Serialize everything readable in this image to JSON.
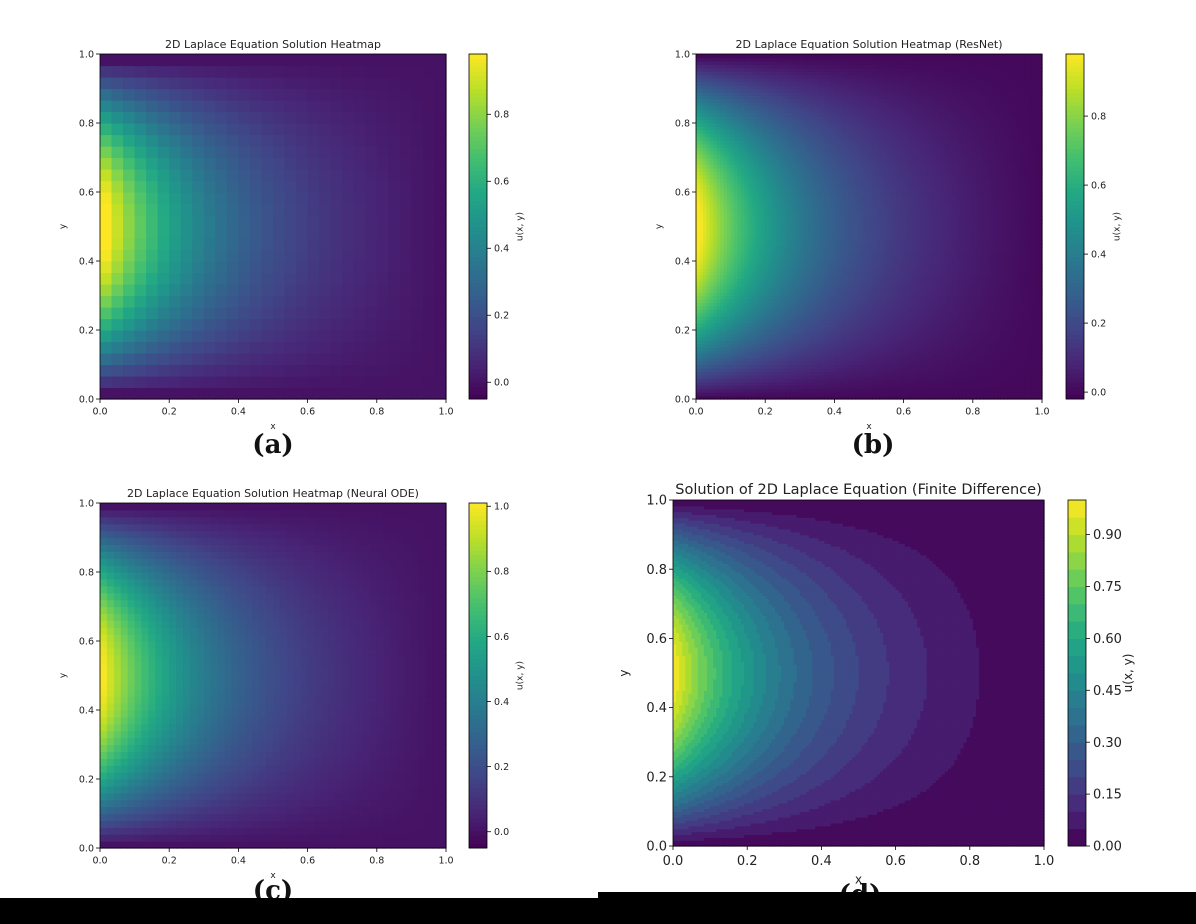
{
  "captions": [
    "(a)",
    "(b)",
    "(c)",
    "(d)"
  ],
  "chart_data": [
    {
      "type": "heatmap",
      "title": "2D Laplace Equation Solution Heatmap",
      "xlabel": "x",
      "ylabel": "y",
      "xlim": [
        0,
        1
      ],
      "ylim": [
        0,
        1
      ],
      "xticks": [
        "0.0",
        "0.2",
        "0.4",
        "0.6",
        "0.8",
        "1.0"
      ],
      "yticks": [
        "0.0",
        "0.2",
        "0.4",
        "0.6",
        "0.8",
        "1.0"
      ],
      "colorbar": {
        "label": "u(x, y)",
        "range": [
          -0.05,
          0.98
        ],
        "ticks": [
          "0.0",
          "0.2",
          "0.4",
          "0.6",
          "0.8"
        ]
      },
      "colormap": "viridis",
      "grid_resolution": 30,
      "boundary_condition": "u(0, y) = sin(pi*y); other edges 0"
    },
    {
      "type": "heatmap",
      "title": "2D Laplace Equation Solution Heatmap (ResNet)",
      "xlabel": "x",
      "ylabel": "y",
      "xlim": [
        0,
        1
      ],
      "ylim": [
        0,
        1
      ],
      "xticks": [
        "0.0",
        "0.2",
        "0.4",
        "0.6",
        "0.8",
        "1.0"
      ],
      "yticks": [
        "0.0",
        "0.2",
        "0.4",
        "0.6",
        "0.8",
        "1.0"
      ],
      "colorbar": {
        "label": "u(x, y)",
        "range": [
          -0.02,
          0.98
        ],
        "ticks": [
          "0.0",
          "0.2",
          "0.4",
          "0.6",
          "0.8"
        ]
      },
      "colormap": "viridis",
      "grid_resolution": 100
    },
    {
      "type": "heatmap",
      "title": "2D Laplace Equation Solution Heatmap (Neural ODE)",
      "xlabel": "x",
      "ylabel": "y",
      "xlim": [
        0,
        1
      ],
      "ylim": [
        0,
        1
      ],
      "xticks": [
        "0.0",
        "0.2",
        "0.4",
        "0.6",
        "0.8",
        "1.0"
      ],
      "yticks": [
        "0.0",
        "0.2",
        "0.4",
        "0.6",
        "0.8",
        "1.0"
      ],
      "colorbar": {
        "label": "u(x, y)",
        "range": [
          -0.05,
          1.01
        ],
        "ticks": [
          "0.0",
          "0.2",
          "0.4",
          "0.6",
          "0.8",
          "1.0"
        ]
      },
      "colormap": "viridis",
      "grid_resolution": 50
    },
    {
      "type": "heatmap",
      "title": "Solution of 2D Laplace Equation (Finite Difference)",
      "xlabel": "x",
      "ylabel": "y",
      "xlim": [
        0,
        1
      ],
      "ylim": [
        0,
        1
      ],
      "xticks": [
        "0.0",
        "0.2",
        "0.4",
        "0.6",
        "0.8",
        "1.0"
      ],
      "yticks": [
        "0.0",
        "0.2",
        "0.4",
        "0.6",
        "0.8",
        "1.0"
      ],
      "colorbar": {
        "label": "u(x, y)",
        "range": [
          0,
          1
        ],
        "ticks": [
          "0.00",
          "0.15",
          "0.30",
          "0.45",
          "0.60",
          "0.75",
          "0.90"
        ]
      },
      "colormap": "viridis",
      "contour_levels": 20,
      "style": "filled contour"
    }
  ]
}
